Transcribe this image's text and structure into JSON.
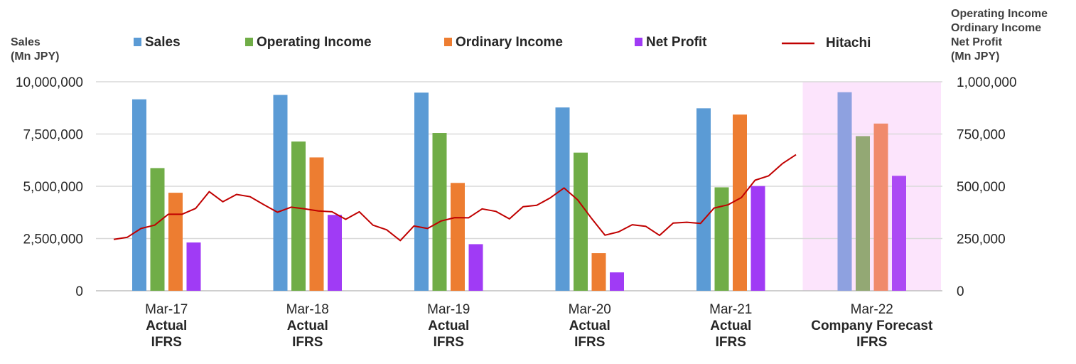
{
  "chart_data": {
    "type": "bar",
    "left_axis": {
      "title_lines": [
        "Sales",
        "(Mn JPY)"
      ],
      "ticks": [
        "10,000,000",
        "7,500,000",
        "5,000,000",
        "2,500,000",
        "0"
      ],
      "ylim": [
        0,
        10000000
      ]
    },
    "right_axis": {
      "title_lines": [
        "Operating Income",
        "Ordinary Income",
        "Net Profit",
        "(Mn JPY)"
      ],
      "ticks": [
        "1,000,000",
        "750,000",
        "500,000",
        "250,000",
        "0"
      ],
      "ylim": [
        0,
        1000000
      ]
    },
    "categories": [
      {
        "line1": "Mar-17",
        "line2": "Actual",
        "line3": "IFRS",
        "forecast": false
      },
      {
        "line1": "Mar-18",
        "line2": "Actual",
        "line3": "IFRS",
        "forecast": false
      },
      {
        "line1": "Mar-19",
        "line2": "Actual",
        "line3": "IFRS",
        "forecast": false
      },
      {
        "line1": "Mar-20",
        "line2": "Actual",
        "line3": "IFRS",
        "forecast": false
      },
      {
        "line1": "Mar-21",
        "line2": "Actual",
        "line3": "IFRS",
        "forecast": false
      },
      {
        "line1": "Mar-22",
        "line2": "Company Forecast",
        "line3": "IFRS",
        "forecast": true
      }
    ],
    "series": [
      {
        "name": "Sales",
        "axis": "left",
        "color": "#5B9BD5",
        "forecast_color": "#8EA1E0",
        "values": [
          9160000,
          9370000,
          9480000,
          8770000,
          8730000,
          9500000
        ]
      },
      {
        "name": "Operating Income",
        "axis": "right",
        "color": "#70AD47",
        "forecast_color": "#93A874",
        "values": [
          587000,
          714000,
          755000,
          661000,
          495000,
          740000
        ]
      },
      {
        "name": "Ordinary Income",
        "axis": "right",
        "color": "#ED7D31",
        "forecast_color": "#F08A6C",
        "values": [
          469000,
          638000,
          516000,
          180000,
          843000,
          800000
        ]
      },
      {
        "name": "Net Profit",
        "axis": "right",
        "color": "#A03BF5",
        "forecast_color": "#AC49F4",
        "values": [
          231000,
          363000,
          223000,
          88000,
          501000,
          550000
        ]
      }
    ],
    "line_series": {
      "name": "Hitachi",
      "color": "#C00000",
      "axis": "right",
      "values": [
        246000,
        256000,
        298000,
        314000,
        366000,
        366000,
        394000,
        474000,
        426000,
        461000,
        450000,
        412000,
        376000,
        400000,
        392000,
        382000,
        378000,
        342000,
        378000,
        314000,
        292000,
        240000,
        310000,
        298000,
        334000,
        350000,
        349000,
        392000,
        380000,
        344000,
        402000,
        409000,
        445000,
        492000,
        435000,
        348000,
        266000,
        282000,
        316000,
        308000,
        265000,
        324000,
        328000,
        322000,
        396000,
        411000,
        446000,
        529000,
        550000,
        608000,
        651000
      ]
    },
    "legend": {
      "placement": "top"
    },
    "grid": true
  }
}
